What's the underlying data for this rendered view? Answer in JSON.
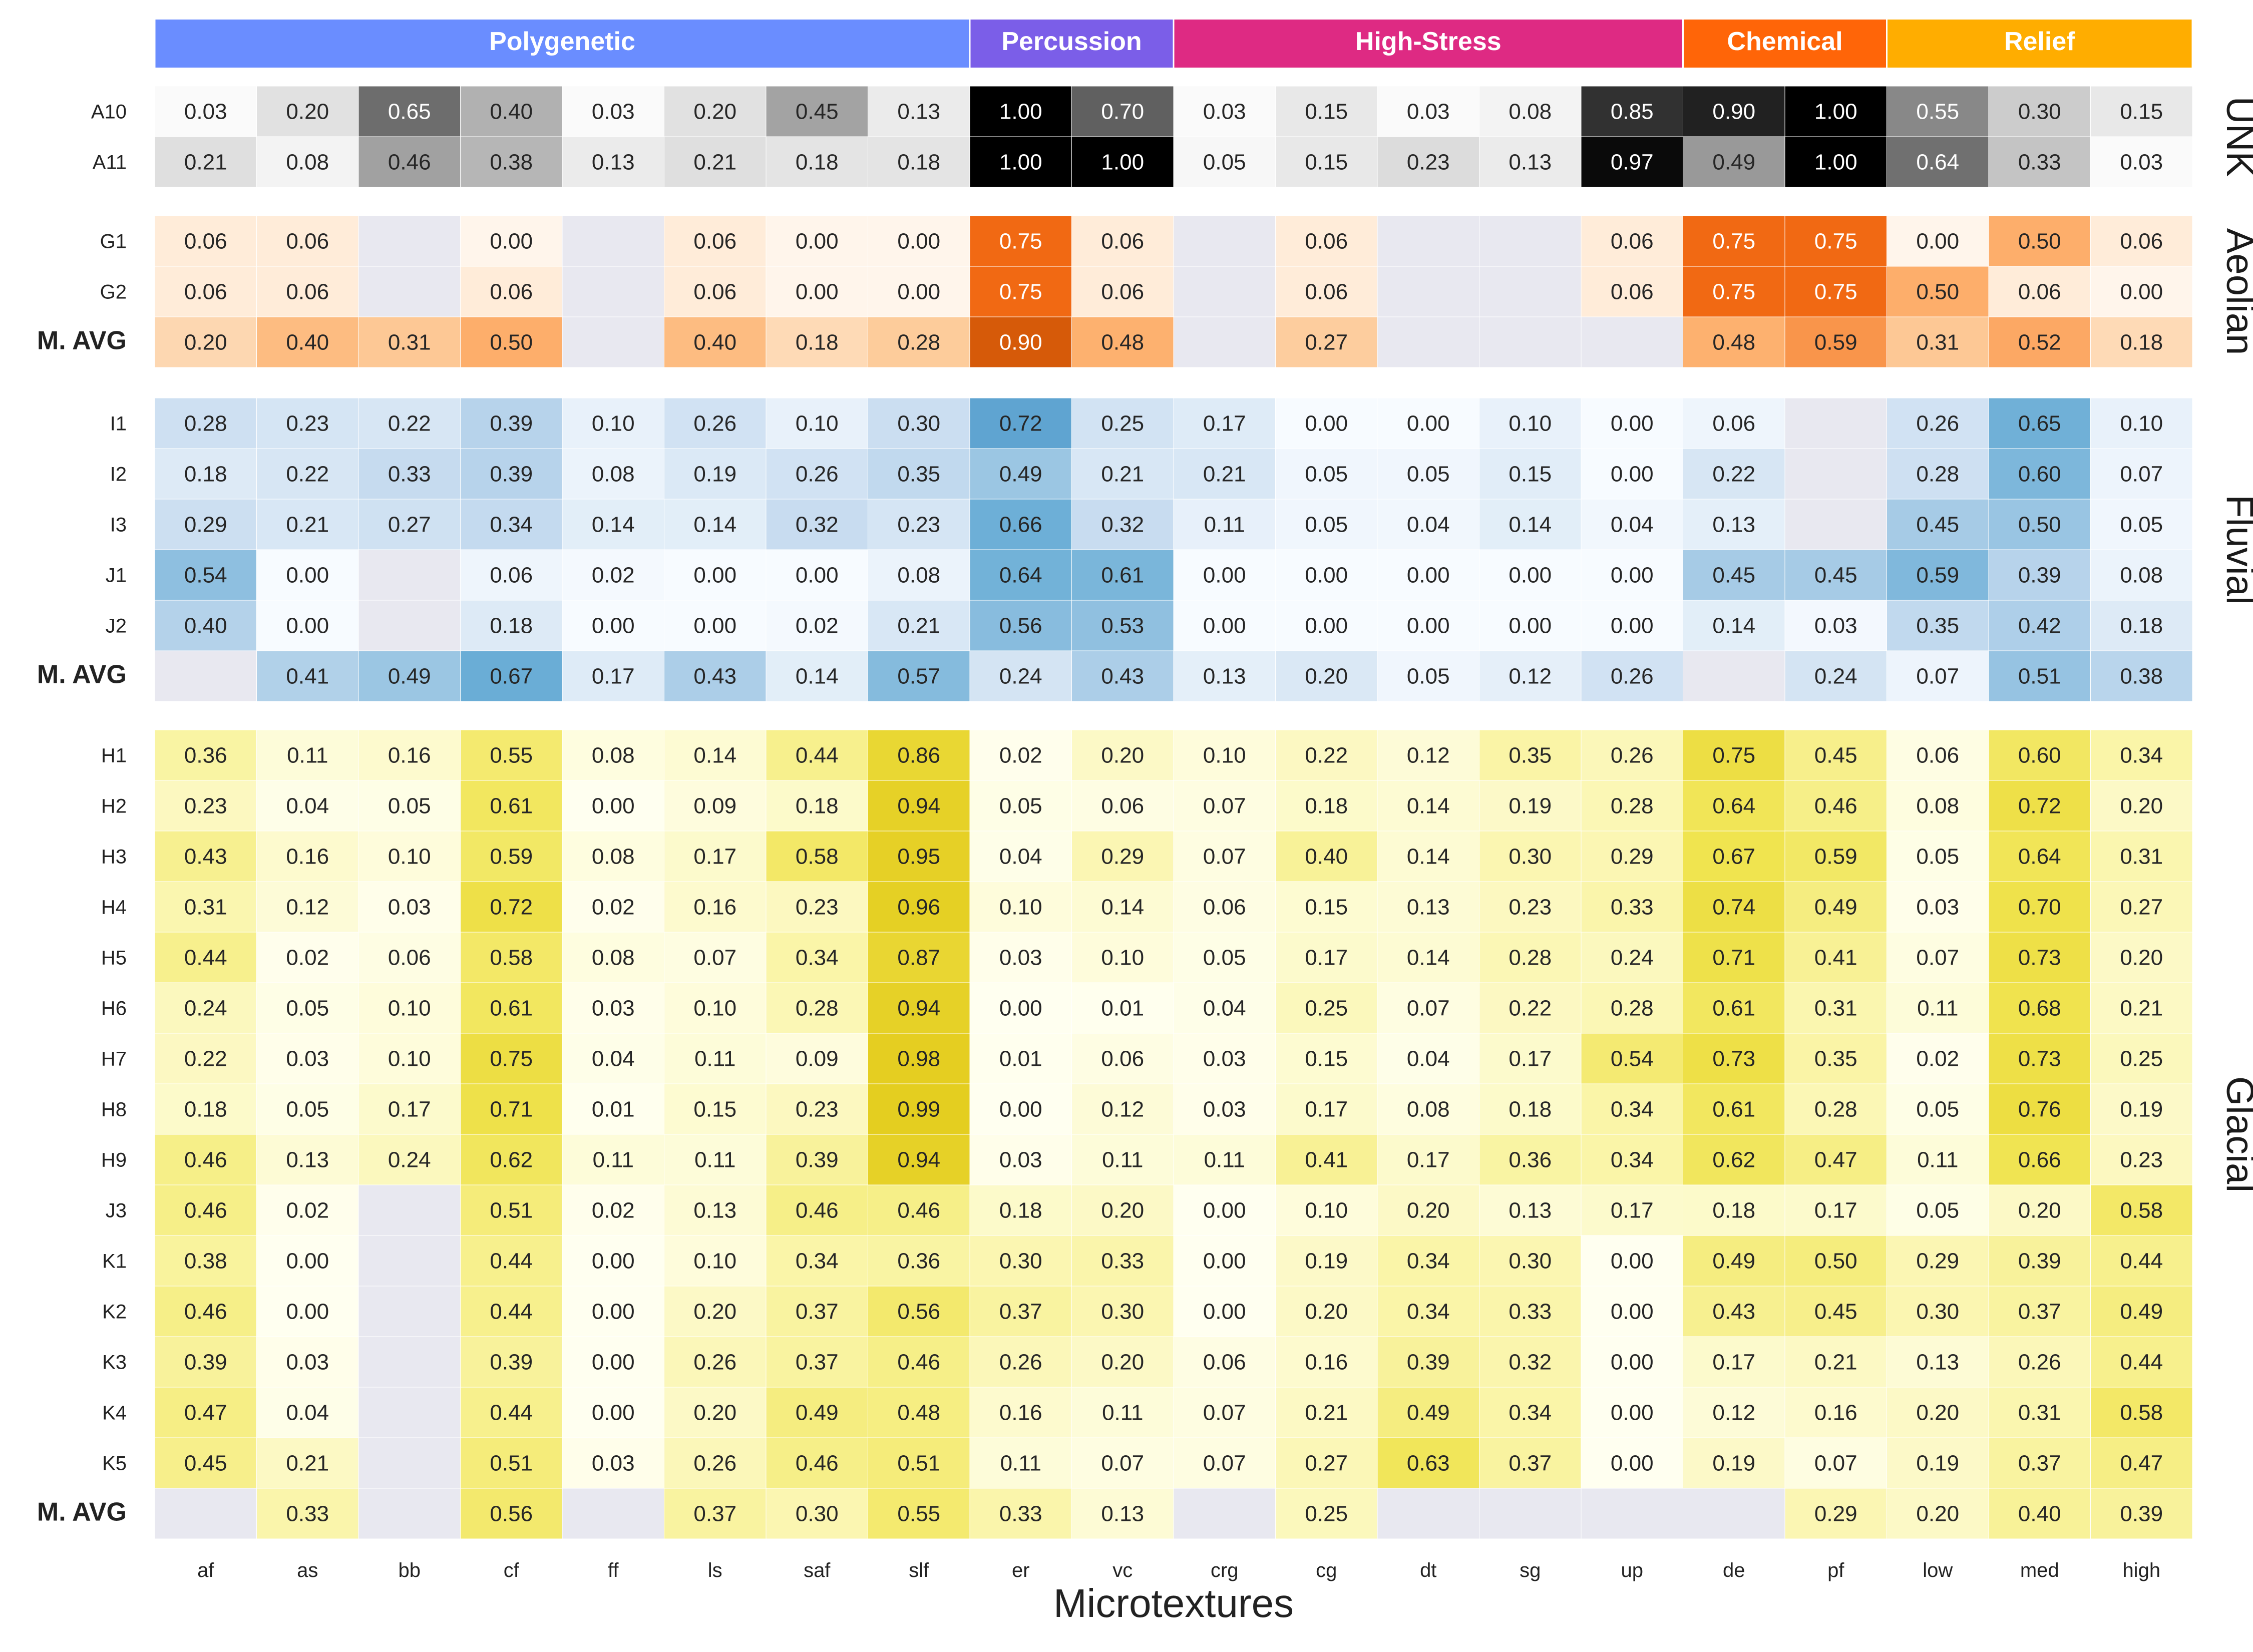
{
  "chart_data": {
    "type": "heatmap",
    "xlabel": "Microtextures",
    "columns": [
      "af",
      "as",
      "bb",
      "cf",
      "ff",
      "ls",
      "saf",
      "slf",
      "er",
      "vc",
      "crg",
      "cg",
      "dt",
      "sg",
      "up",
      "de",
      "pf",
      "low",
      "med",
      "high"
    ],
    "column_groups": [
      {
        "name": "Polygenetic",
        "start": 0,
        "count": 8,
        "color": "#6a8dff"
      },
      {
        "name": "Percussion",
        "start": 8,
        "count": 2,
        "color": "#7b5ee8"
      },
      {
        "name": "High-Stress",
        "start": 10,
        "count": 5,
        "color": "#de2a83"
      },
      {
        "name": "Chemical",
        "start": 15,
        "count": 2,
        "color": "#ff6508"
      },
      {
        "name": "Relief",
        "start": 17,
        "count": 3,
        "color": "#ffad00"
      }
    ],
    "sections": [
      {
        "name": "UNK",
        "colormap": "Greys",
        "rows": [
          {
            "label": "A10",
            "values": [
              0.03,
              0.2,
              0.65,
              0.4,
              0.03,
              0.2,
              0.45,
              0.13,
              1.0,
              0.7,
              0.03,
              0.15,
              0.03,
              0.08,
              0.85,
              0.9,
              1.0,
              0.55,
              0.3,
              0.15
            ]
          },
          {
            "label": "A11",
            "values": [
              0.21,
              0.08,
              0.46,
              0.38,
              0.13,
              0.21,
              0.18,
              0.18,
              1.0,
              1.0,
              0.05,
              0.15,
              0.23,
              0.13,
              0.97,
              0.49,
              1.0,
              0.64,
              0.33,
              0.03
            ]
          }
        ]
      },
      {
        "name": "Aeolian",
        "colormap": "Oranges",
        "rows": [
          {
            "label": "G1",
            "values": [
              0.06,
              0.06,
              null,
              0.0,
              null,
              0.06,
              0.0,
              0.0,
              0.75,
              0.06,
              null,
              0.06,
              null,
              null,
              0.06,
              0.75,
              0.75,
              0.0,
              0.5,
              0.06
            ]
          },
          {
            "label": "G2",
            "values": [
              0.06,
              0.06,
              null,
              0.06,
              null,
              0.06,
              0.0,
              0.0,
              0.75,
              0.06,
              null,
              0.06,
              null,
              null,
              0.06,
              0.75,
              0.75,
              0.5,
              0.06,
              0.0
            ]
          },
          {
            "label": "M. AVG",
            "bold": true,
            "values": [
              0.2,
              0.4,
              0.31,
              0.5,
              null,
              0.4,
              0.18,
              0.28,
              0.9,
              0.48,
              null,
              0.27,
              null,
              null,
              null,
              0.48,
              0.59,
              0.31,
              0.52,
              0.18
            ]
          }
        ]
      },
      {
        "name": "Fluvial",
        "colormap": "Blues",
        "rows": [
          {
            "label": "I1",
            "values": [
              0.28,
              0.23,
              0.22,
              0.39,
              0.1,
              0.26,
              0.1,
              0.3,
              0.72,
              0.25,
              0.17,
              0.0,
              0.0,
              0.1,
              0.0,
              0.06,
              null,
              0.26,
              0.65,
              0.1
            ]
          },
          {
            "label": "I2",
            "values": [
              0.18,
              0.22,
              0.33,
              0.39,
              0.08,
              0.19,
              0.26,
              0.35,
              0.49,
              0.21,
              0.21,
              0.05,
              0.05,
              0.15,
              0.0,
              0.22,
              null,
              0.28,
              0.6,
              0.07
            ]
          },
          {
            "label": "I3",
            "values": [
              0.29,
              0.21,
              0.27,
              0.34,
              0.14,
              0.14,
              0.32,
              0.23,
              0.66,
              0.32,
              0.11,
              0.05,
              0.04,
              0.14,
              0.04,
              0.13,
              null,
              0.45,
              0.5,
              0.05
            ]
          },
          {
            "label": "J1",
            "values": [
              0.54,
              0.0,
              null,
              0.06,
              0.02,
              0.0,
              0.0,
              0.08,
              0.64,
              0.61,
              0.0,
              0.0,
              0.0,
              0.0,
              0.0,
              0.45,
              0.45,
              0.59,
              0.39,
              0.08
            ]
          },
          {
            "label": "J2",
            "values": [
              0.4,
              0.0,
              null,
              0.18,
              0.0,
              0.0,
              0.02,
              0.21,
              0.56,
              0.53,
              0.0,
              0.0,
              0.0,
              0.0,
              0.0,
              0.14,
              0.03,
              0.35,
              0.42,
              0.18
            ]
          },
          {
            "label": "M. AVG",
            "bold": true,
            "values": [
              null,
              0.41,
              0.49,
              0.67,
              0.17,
              0.43,
              0.14,
              0.57,
              0.24,
              0.43,
              0.13,
              0.2,
              0.05,
              0.12,
              0.26,
              null,
              0.24,
              0.07,
              0.51,
              0.38
            ]
          }
        ]
      },
      {
        "name": "Glacial",
        "colormap": "Yellows",
        "rows": [
          {
            "label": "H1",
            "values": [
              0.36,
              0.11,
              0.16,
              0.55,
              0.08,
              0.14,
              0.44,
              0.86,
              0.02,
              0.2,
              0.1,
              0.22,
              0.12,
              0.35,
              0.26,
              0.75,
              0.45,
              0.06,
              0.6,
              0.34
            ]
          },
          {
            "label": "H2",
            "values": [
              0.23,
              0.04,
              0.05,
              0.61,
              0.0,
              0.09,
              0.18,
              0.94,
              0.05,
              0.06,
              0.07,
              0.18,
              0.14,
              0.19,
              0.28,
              0.64,
              0.46,
              0.08,
              0.72,
              0.2
            ]
          },
          {
            "label": "H3",
            "values": [
              0.43,
              0.16,
              0.1,
              0.59,
              0.08,
              0.17,
              0.58,
              0.95,
              0.04,
              0.29,
              0.07,
              0.4,
              0.14,
              0.3,
              0.29,
              0.67,
              0.59,
              0.05,
              0.64,
              0.31
            ]
          },
          {
            "label": "H4",
            "values": [
              0.31,
              0.12,
              0.03,
              0.72,
              0.02,
              0.16,
              0.23,
              0.96,
              0.1,
              0.14,
              0.06,
              0.15,
              0.13,
              0.23,
              0.33,
              0.74,
              0.49,
              0.03,
              0.7,
              0.27
            ]
          },
          {
            "label": "H5",
            "values": [
              0.44,
              0.02,
              0.06,
              0.58,
              0.08,
              0.07,
              0.34,
              0.87,
              0.03,
              0.1,
              0.05,
              0.17,
              0.14,
              0.28,
              0.24,
              0.71,
              0.41,
              0.07,
              0.73,
              0.2
            ]
          },
          {
            "label": "H6",
            "values": [
              0.24,
              0.05,
              0.1,
              0.61,
              0.03,
              0.1,
              0.28,
              0.94,
              0.0,
              0.01,
              0.04,
              0.25,
              0.07,
              0.22,
              0.28,
              0.61,
              0.31,
              0.11,
              0.68,
              0.21
            ]
          },
          {
            "label": "H7",
            "values": [
              0.22,
              0.03,
              0.1,
              0.75,
              0.04,
              0.11,
              0.09,
              0.98,
              0.01,
              0.06,
              0.03,
              0.15,
              0.04,
              0.17,
              0.54,
              0.73,
              0.35,
              0.02,
              0.73,
              0.25
            ]
          },
          {
            "label": "H8",
            "values": [
              0.18,
              0.05,
              0.17,
              0.71,
              0.01,
              0.15,
              0.23,
              0.99,
              0.0,
              0.12,
              0.03,
              0.17,
              0.08,
              0.18,
              0.34,
              0.61,
              0.28,
              0.05,
              0.76,
              0.19
            ]
          },
          {
            "label": "H9",
            "values": [
              0.46,
              0.13,
              0.24,
              0.62,
              0.11,
              0.11,
              0.39,
              0.94,
              0.03,
              0.11,
              0.11,
              0.41,
              0.17,
              0.36,
              0.34,
              0.62,
              0.47,
              0.11,
              0.66,
              0.23
            ]
          },
          {
            "label": "J3",
            "values": [
              0.46,
              0.02,
              null,
              0.51,
              0.02,
              0.13,
              0.46,
              0.46,
              0.18,
              0.2,
              0.0,
              0.1,
              0.2,
              0.13,
              0.17,
              0.18,
              0.17,
              0.05,
              0.2,
              0.58
            ]
          },
          {
            "label": "K1",
            "values": [
              0.38,
              0.0,
              null,
              0.44,
              0.0,
              0.1,
              0.34,
              0.36,
              0.3,
              0.33,
              0.0,
              0.19,
              0.34,
              0.3,
              0.0,
              0.49,
              0.5,
              0.29,
              0.39,
              0.44
            ]
          },
          {
            "label": "K2",
            "values": [
              0.46,
              0.0,
              null,
              0.44,
              0.0,
              0.2,
              0.37,
              0.56,
              0.37,
              0.3,
              0.0,
              0.2,
              0.34,
              0.33,
              0.0,
              0.43,
              0.45,
              0.3,
              0.37,
              0.49
            ]
          },
          {
            "label": "K3",
            "values": [
              0.39,
              0.03,
              null,
              0.39,
              0.0,
              0.26,
              0.37,
              0.46,
              0.26,
              0.2,
              0.06,
              0.16,
              0.39,
              0.32,
              0.0,
              0.17,
              0.21,
              0.13,
              0.26,
              0.44
            ]
          },
          {
            "label": "K4",
            "values": [
              0.47,
              0.04,
              null,
              0.44,
              0.0,
              0.2,
              0.49,
              0.48,
              0.16,
              0.11,
              0.07,
              0.21,
              0.49,
              0.34,
              0.0,
              0.12,
              0.16,
              0.2,
              0.31,
              0.58
            ]
          },
          {
            "label": "K5",
            "values": [
              0.45,
              0.21,
              null,
              0.51,
              0.03,
              0.26,
              0.46,
              0.51,
              0.11,
              0.07,
              0.07,
              0.27,
              0.63,
              0.37,
              0.0,
              0.19,
              0.07,
              0.19,
              0.37,
              0.47
            ]
          },
          {
            "label": "M. AVG",
            "bold": true,
            "values": [
              null,
              0.33,
              null,
              0.56,
              null,
              0.37,
              0.3,
              0.55,
              0.33,
              0.13,
              null,
              0.25,
              null,
              null,
              null,
              null,
              0.29,
              0.2,
              0.4,
              0.39
            ]
          }
        ]
      }
    ],
    "missing_color": "#e8e8f0",
    "grid": false,
    "legend": "none"
  }
}
